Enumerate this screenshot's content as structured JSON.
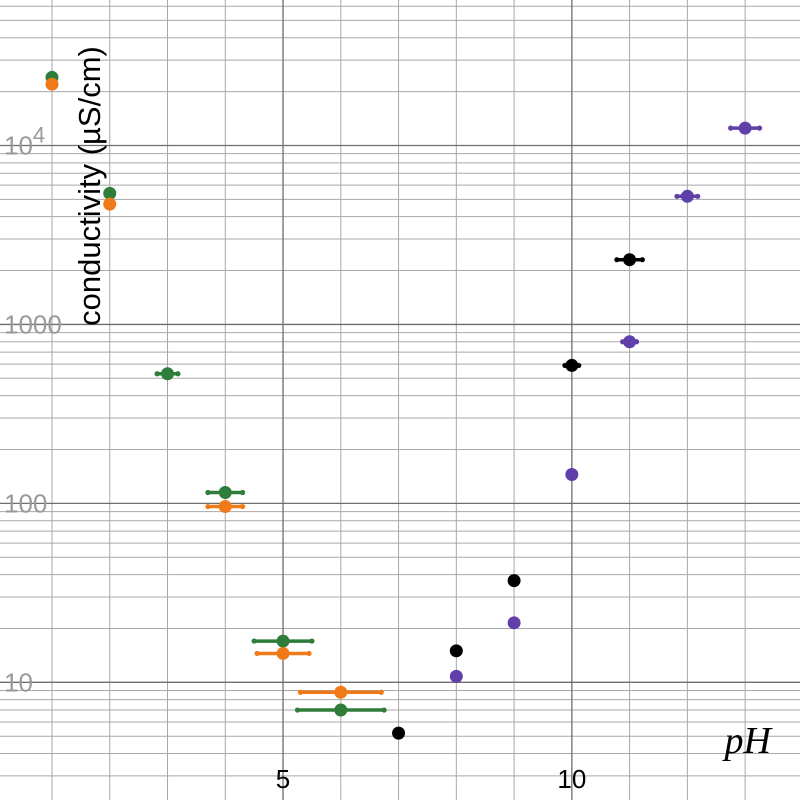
{
  "chart_data": {
    "type": "scatter",
    "title": "",
    "xlabel": "pH",
    "ylabel": "conductivity (µS/cm)",
    "xlim": [
      0.1,
      13.95
    ],
    "ylim": [
      2.2,
      65000
    ],
    "yscale": "log",
    "grid": true,
    "legend": "none",
    "x_ticks": [
      {
        "value": 5,
        "label": "5"
      },
      {
        "value": 10,
        "label": "10"
      }
    ],
    "y_ticks": [
      {
        "value": 10,
        "base": "10",
        "exp": ""
      },
      {
        "value": 100,
        "base": "100",
        "exp": ""
      },
      {
        "value": 1000,
        "base": "1000",
        "exp": ""
      },
      {
        "value": 10000,
        "base": "10",
        "exp": "4"
      }
    ],
    "series": [
      {
        "color": "#2e7d3a",
        "points": [
          {
            "x": 1,
            "y": 24000,
            "xerr": 0
          },
          {
            "x": 2,
            "y": 5400,
            "xerr": 0
          },
          {
            "x": 3,
            "y": 530,
            "xerr": 0.18
          },
          {
            "x": 4,
            "y": 115,
            "xerr": 0.3
          },
          {
            "x": 5,
            "y": 17,
            "xerr": 0.5
          },
          {
            "x": 6,
            "y": 7,
            "xerr": 0.75
          }
        ]
      },
      {
        "color": "#f07a18",
        "points": [
          {
            "x": 1,
            "y": 22000,
            "xerr": 0
          },
          {
            "x": 2,
            "y": 4700,
            "xerr": 0
          },
          {
            "x": 4,
            "y": 96,
            "xerr": 0.3
          },
          {
            "x": 5,
            "y": 14.5,
            "xerr": 0.45
          },
          {
            "x": 6,
            "y": 8.8,
            "xerr": 0.7
          }
        ]
      },
      {
        "color": "#000000",
        "points": [
          {
            "x": 7,
            "y": 5.2,
            "xerr": 0
          },
          {
            "x": 8,
            "y": 15,
            "xerr": 0
          },
          {
            "x": 9,
            "y": 37,
            "xerr": 0
          },
          {
            "x": 10,
            "y": 590,
            "xerr": 0.12
          },
          {
            "x": 11,
            "y": 2300,
            "xerr": 0.22
          }
        ]
      },
      {
        "color": "#6040a8",
        "points": [
          {
            "x": 8,
            "y": 10.8,
            "xerr": 0
          },
          {
            "x": 9,
            "y": 21.5,
            "xerr": 0
          },
          {
            "x": 10,
            "y": 145,
            "xerr": 0
          },
          {
            "x": 11,
            "y": 800,
            "xerr": 0.12
          },
          {
            "x": 12,
            "y": 5200,
            "xerr": 0.18
          },
          {
            "x": 13,
            "y": 12500,
            "xerr": 0.25
          }
        ]
      }
    ]
  }
}
